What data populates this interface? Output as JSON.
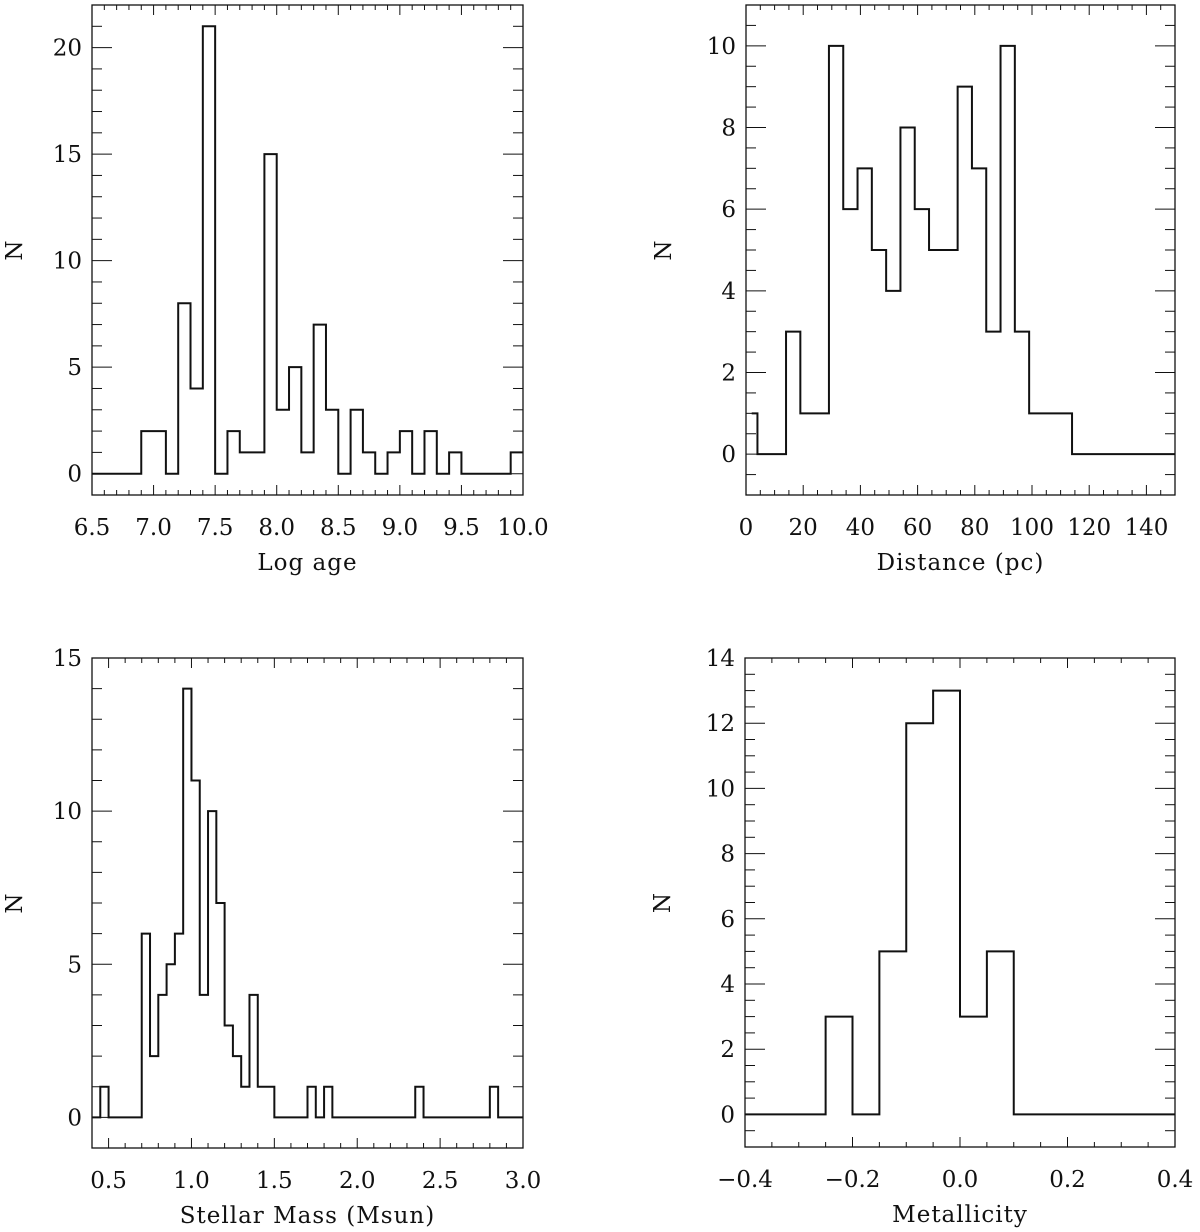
{
  "chart_data": [
    {
      "type": "bar",
      "style": "step-histogram",
      "xlabel": "Log age",
      "ylabel": "N",
      "xlim": [
        6.5,
        10.0
      ],
      "ylim": [
        -1,
        22
      ],
      "xticks": {
        "major": 0.5,
        "minor": 0.1,
        "labels": [
          "6.5",
          "7.0",
          "7.5",
          "8.0",
          "8.5",
          "9.0",
          "9.5",
          "10.0"
        ],
        "values": [
          6.5,
          7.0,
          7.5,
          8.0,
          8.5,
          9.0,
          9.5,
          10.0
        ]
      },
      "yticks": {
        "major": 5,
        "minor": 1,
        "labels": [
          "0",
          "5",
          "10",
          "15",
          "20"
        ],
        "values": [
          0,
          5,
          10,
          15,
          20
        ]
      },
      "bin_edges": [
        6.5,
        6.6,
        6.7,
        6.8,
        6.9,
        7.0,
        7.1,
        7.2,
        7.3,
        7.4,
        7.5,
        7.6,
        7.7,
        7.8,
        7.9,
        8.0,
        8.1,
        8.2,
        8.3,
        8.4,
        8.5,
        8.6,
        8.7,
        8.8,
        8.9,
        9.0,
        9.1,
        9.2,
        9.3,
        9.4,
        9.5,
        9.6,
        9.7,
        9.8,
        9.9,
        10.0
      ],
      "counts": [
        0,
        0,
        0,
        0,
        2,
        2,
        0,
        8,
        4,
        21,
        0,
        2,
        1,
        1,
        15,
        3,
        5,
        1,
        7,
        3,
        0,
        3,
        1,
        0,
        1,
        2,
        0,
        2,
        0,
        1,
        0,
        0,
        0,
        0,
        1
      ]
    },
    {
      "type": "bar",
      "style": "step-histogram",
      "xlabel": "Distance (pc)",
      "ylabel": "N",
      "xlim": [
        0,
        150
      ],
      "ylim": [
        -1,
        11
      ],
      "xticks": {
        "major": 20,
        "minor": 5,
        "labels": [
          "0",
          "20",
          "40",
          "60",
          "80",
          "100",
          "120",
          "140"
        ],
        "values": [
          0,
          20,
          40,
          60,
          80,
          100,
          120,
          140
        ]
      },
      "yticks": {
        "major": 2,
        "minor": 0.5,
        "labels": [
          "0",
          "2",
          "4",
          "6",
          "8",
          "10"
        ],
        "values": [
          0,
          2,
          4,
          6,
          8,
          10
        ]
      },
      "bin_edges": [
        2,
        4,
        9,
        14,
        19,
        24,
        29,
        34,
        39,
        44,
        49,
        54,
        59,
        64,
        69,
        74,
        79,
        84,
        89,
        94,
        99,
        104,
        109,
        114,
        150
      ],
      "counts": [
        1,
        0,
        0,
        3,
        1,
        1,
        10,
        6,
        7,
        5,
        4,
        8,
        6,
        5,
        5,
        9,
        7,
        3,
        10,
        3,
        1,
        1,
        1,
        0
      ]
    },
    {
      "type": "bar",
      "style": "step-histogram",
      "xlabel": "Stellar Mass (Msun)",
      "ylabel": "N",
      "xlim": [
        0.4,
        3.0
      ],
      "ylim": [
        -1,
        15
      ],
      "xticks": {
        "major": 0.5,
        "minor": 0.1,
        "labels": [
          "0.5",
          "1.0",
          "1.5",
          "2.0",
          "2.5",
          "3.0"
        ],
        "values": [
          0.5,
          1.0,
          1.5,
          2.0,
          2.5,
          3.0
        ]
      },
      "yticks": {
        "major": 5,
        "minor": 1,
        "labels": [
          "0",
          "5",
          "10",
          "15"
        ],
        "values": [
          0,
          5,
          10,
          15
        ]
      },
      "bin_edges": [
        0.4,
        0.45,
        0.5,
        0.7,
        0.75,
        0.8,
        0.85,
        0.9,
        0.95,
        1.0,
        1.05,
        1.1,
        1.15,
        1.2,
        1.25,
        1.3,
        1.35,
        1.4,
        1.5,
        1.7,
        1.75,
        1.8,
        1.85,
        2.35,
        2.4,
        2.8,
        2.85,
        3.0
      ],
      "counts": [
        0,
        1,
        0,
        6,
        2,
        4,
        5,
        6,
        14,
        11,
        4,
        10,
        7,
        3,
        2,
        1,
        4,
        1,
        0,
        1,
        0,
        1,
        0,
        1,
        0,
        1,
        0
      ]
    },
    {
      "type": "bar",
      "style": "step-histogram",
      "xlabel": "Metallicity",
      "ylabel": "N",
      "xlim": [
        -0.4,
        0.4
      ],
      "ylim": [
        -1,
        14
      ],
      "xticks": {
        "major": 0.2,
        "minor": 0.05,
        "labels": [
          "−0.4",
          "−0.2",
          "0.0",
          "0.2",
          "0.4"
        ],
        "values": [
          -0.4,
          -0.2,
          0.0,
          0.2,
          0.4
        ]
      },
      "yticks": {
        "major": 2,
        "minor": 0.5,
        "labels": [
          "0",
          "2",
          "4",
          "6",
          "8",
          "10",
          "12",
          "14"
        ],
        "values": [
          0,
          2,
          4,
          6,
          8,
          10,
          12,
          14
        ]
      },
      "bin_edges": [
        -0.4,
        -0.25,
        -0.2,
        -0.15,
        -0.1,
        -0.05,
        0.0,
        0.05,
        0.1,
        0.4
      ],
      "counts": [
        0,
        3,
        0,
        5,
        12,
        13,
        3,
        5,
        0
      ]
    }
  ],
  "colors": {
    "line": "#111111",
    "background": "#ffffff"
  }
}
